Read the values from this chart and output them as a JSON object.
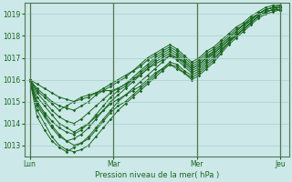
{
  "bg_color": "#cce8e8",
  "line_color": "#1a6620",
  "grid_color": "#aacfcf",
  "xlabel": "Pression niveau de la mer( hPa )",
  "ylim": [
    1012.5,
    1019.5
  ],
  "yticks": [
    1013,
    1014,
    1015,
    1016,
    1017,
    1018,
    1019
  ],
  "xtick_labels": [
    "Lun",
    "Mar",
    "Mer",
    "Jeu"
  ],
  "xtick_positions": [
    0,
    48,
    96,
    144
  ],
  "vlines": [
    0,
    48,
    96,
    144
  ],
  "series": [
    [
      1016.0,
      1015.5,
      1015.2,
      1014.9,
      1014.6,
      1014.8,
      1015.0,
      1015.2,
      1015.3,
      1015.4,
      1015.5,
      1015.5,
      1015.6,
      1015.8,
      1016.0,
      1016.2,
      1016.5,
      1016.7,
      1016.9,
      1017.1,
      1017.0,
      1016.8,
      1016.5,
      1016.7,
      1017.0,
      1017.2,
      1017.5,
      1017.8,
      1018.0,
      1018.3,
      1018.6,
      1018.9,
      1019.1,
      1019.2,
      1019.3
    ],
    [
      1016.0,
      1015.2,
      1014.8,
      1014.4,
      1014.0,
      1013.8,
      1013.6,
      1013.8,
      1014.0,
      1014.3,
      1014.6,
      1014.9,
      1015.1,
      1015.3,
      1015.6,
      1015.9,
      1016.2,
      1016.5,
      1016.8,
      1017.1,
      1016.9,
      1016.6,
      1016.3,
      1016.5,
      1016.8,
      1017.1,
      1017.4,
      1017.7,
      1018.0,
      1018.3,
      1018.6,
      1018.9,
      1019.1,
      1019.2,
      1019.2
    ],
    [
      1016.0,
      1014.9,
      1014.4,
      1013.9,
      1013.5,
      1013.2,
      1013.0,
      1013.1,
      1013.3,
      1013.7,
      1014.1,
      1014.5,
      1014.8,
      1015.0,
      1015.3,
      1015.6,
      1015.9,
      1016.2,
      1016.5,
      1016.8,
      1016.7,
      1016.4,
      1016.2,
      1016.4,
      1016.7,
      1017.0,
      1017.3,
      1017.7,
      1018.0,
      1018.3,
      1018.6,
      1018.9,
      1019.1,
      1019.2,
      1019.2
    ],
    [
      1016.0,
      1014.6,
      1014.0,
      1013.4,
      1013.0,
      1012.8,
      1012.7,
      1012.8,
      1013.0,
      1013.4,
      1013.8,
      1014.2,
      1014.6,
      1014.9,
      1015.2,
      1015.5,
      1015.8,
      1016.1,
      1016.4,
      1016.7,
      1016.5,
      1016.3,
      1016.0,
      1016.2,
      1016.5,
      1016.8,
      1017.2,
      1017.6,
      1017.9,
      1018.2,
      1018.5,
      1018.8,
      1019.0,
      1019.1,
      1019.2
    ],
    [
      1016.0,
      1015.4,
      1015.0,
      1014.6,
      1014.3,
      1014.1,
      1014.0,
      1014.2,
      1014.5,
      1014.8,
      1015.1,
      1015.4,
      1015.6,
      1015.8,
      1016.1,
      1016.4,
      1016.7,
      1017.0,
      1017.2,
      1017.4,
      1017.2,
      1016.9,
      1016.6,
      1016.8,
      1017.1,
      1017.3,
      1017.6,
      1017.9,
      1018.2,
      1018.5,
      1018.7,
      1019.0,
      1019.2,
      1019.3,
      1019.3
    ],
    [
      1016.0,
      1015.6,
      1015.3,
      1015.0,
      1014.8,
      1014.7,
      1014.6,
      1014.8,
      1015.0,
      1015.3,
      1015.5,
      1015.7,
      1015.9,
      1016.1,
      1016.4,
      1016.6,
      1016.9,
      1017.1,
      1017.3,
      1017.5,
      1017.3,
      1017.0,
      1016.7,
      1016.9,
      1017.2,
      1017.4,
      1017.7,
      1018.0,
      1018.3,
      1018.5,
      1018.8,
      1019.0,
      1019.2,
      1019.3,
      1019.4
    ],
    [
      1016.0,
      1014.3,
      1013.7,
      1013.2,
      1012.9,
      1012.7,
      1012.9,
      1013.1,
      1013.4,
      1013.8,
      1014.2,
      1014.6,
      1015.0,
      1015.3,
      1015.5,
      1015.7,
      1016.0,
      1016.3,
      1016.5,
      1016.7,
      1016.6,
      1016.3,
      1016.1,
      1016.3,
      1016.6,
      1016.9,
      1017.3,
      1017.7,
      1018.0,
      1018.3,
      1018.6,
      1018.9,
      1019.1,
      1019.2,
      1019.2
    ],
    [
      1016.0,
      1015.0,
      1014.5,
      1014.1,
      1013.8,
      1013.6,
      1013.5,
      1013.7,
      1014.0,
      1014.4,
      1014.8,
      1015.2,
      1015.5,
      1015.7,
      1016.0,
      1016.3,
      1016.6,
      1016.9,
      1017.1,
      1017.3,
      1017.1,
      1016.8,
      1016.5,
      1016.7,
      1017.0,
      1017.3,
      1017.6,
      1017.9,
      1018.2,
      1018.5,
      1018.8,
      1019.0,
      1019.2,
      1019.3,
      1019.3
    ],
    [
      1016.0,
      1015.8,
      1015.6,
      1015.4,
      1015.2,
      1015.1,
      1015.0,
      1015.1,
      1015.2,
      1015.4,
      1015.6,
      1015.8,
      1016.0,
      1016.2,
      1016.4,
      1016.7,
      1017.0,
      1017.2,
      1017.4,
      1017.6,
      1017.4,
      1017.1,
      1016.8,
      1017.0,
      1017.3,
      1017.5,
      1017.8,
      1018.1,
      1018.4,
      1018.6,
      1018.9,
      1019.1,
      1019.3,
      1019.4,
      1019.4
    ],
    [
      1016.0,
      1014.8,
      1014.3,
      1013.8,
      1013.4,
      1013.2,
      1013.3,
      1013.5,
      1013.8,
      1014.2,
      1014.6,
      1015.0,
      1015.3,
      1015.6,
      1015.9,
      1016.2,
      1016.5,
      1016.8,
      1017.0,
      1017.2,
      1017.0,
      1016.7,
      1016.4,
      1016.6,
      1016.9,
      1017.2,
      1017.5,
      1017.8,
      1018.1,
      1018.4,
      1018.7,
      1019.0,
      1019.2,
      1019.3,
      1019.3
    ]
  ]
}
